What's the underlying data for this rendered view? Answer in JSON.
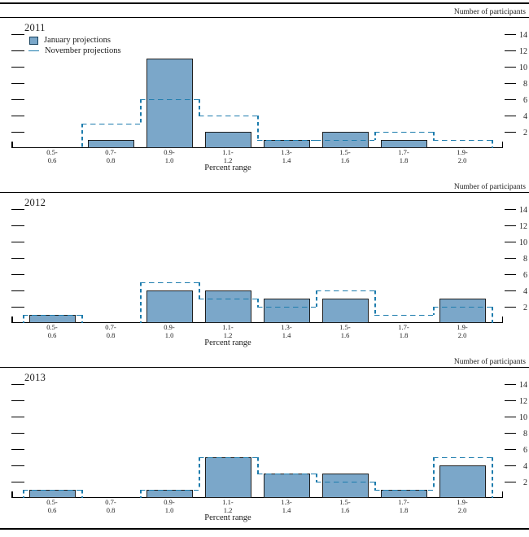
{
  "figure": {
    "units_label": "Number of participants",
    "x_axis_label": "Percent range",
    "colors": {
      "bar_fill": "#7BA7C9",
      "bar_border": "#1F1F1F",
      "dash_line": "#1D7CAD",
      "text": "#1A1A1A",
      "rule": "#000000"
    }
  },
  "chart_data": [
    {
      "type": "bar",
      "title": "2011",
      "categories": [
        [
          "0.5-",
          "0.6"
        ],
        [
          "0.7-",
          "0.8"
        ],
        [
          "0.9-",
          "1.0"
        ],
        [
          "1.1-",
          "1.2"
        ],
        [
          "1.3-",
          "1.4"
        ],
        [
          "1.5-",
          "1.6"
        ],
        [
          "1.7-",
          "1.8"
        ],
        [
          "1.9-",
          "2.0"
        ]
      ],
      "series": [
        {
          "name": "January projections",
          "style": "filled-bar",
          "values": [
            0,
            1,
            11,
            2,
            1,
            2,
            1,
            0
          ]
        },
        {
          "name": "November projections",
          "style": "dashed-step-outline",
          "values": [
            0,
            3,
            6,
            4,
            1,
            1,
            2,
            1
          ]
        }
      ],
      "xlabel": "Percent range",
      "ylabel": "Number of participants",
      "yticks": [
        2,
        4,
        6,
        8,
        10,
        12,
        14
      ],
      "ylim": [
        0,
        16
      ],
      "grid": false,
      "legend_position": "top-left"
    },
    {
      "type": "bar",
      "title": "2012",
      "categories": [
        [
          "0.5-",
          "0.6"
        ],
        [
          "0.7-",
          "0.8"
        ],
        [
          "0.9-",
          "1.0"
        ],
        [
          "1.1-",
          "1.2"
        ],
        [
          "1.3-",
          "1.4"
        ],
        [
          "1.5-",
          "1.6"
        ],
        [
          "1.7-",
          "1.8"
        ],
        [
          "1.9-",
          "2.0"
        ]
      ],
      "series": [
        {
          "name": "January projections",
          "style": "filled-bar",
          "values": [
            1,
            0,
            4,
            4,
            3,
            3,
            0,
            3
          ]
        },
        {
          "name": "November projections",
          "style": "dashed-step-outline",
          "values": [
            1,
            0,
            5,
            3,
            2,
            4,
            1,
            2
          ]
        }
      ],
      "xlabel": "Percent range",
      "ylabel": "Number of participants",
      "yticks": [
        2,
        4,
        6,
        8,
        10,
        12,
        14
      ],
      "ylim": [
        0,
        16
      ],
      "grid": false,
      "legend_position": "none"
    },
    {
      "type": "bar",
      "title": "2013",
      "categories": [
        [
          "0.5-",
          "0.6"
        ],
        [
          "0.7-",
          "0.8"
        ],
        [
          "0.9-",
          "1.0"
        ],
        [
          "1.1-",
          "1.2"
        ],
        [
          "1.3-",
          "1.4"
        ],
        [
          "1.5-",
          "1.6"
        ],
        [
          "1.7-",
          "1.8"
        ],
        [
          "1.9-",
          "2.0"
        ]
      ],
      "series": [
        {
          "name": "January projections",
          "style": "filled-bar",
          "values": [
            1,
            0,
            1,
            5,
            3,
            3,
            1,
            4
          ]
        },
        {
          "name": "November projections",
          "style": "dashed-step-outline",
          "values": [
            1,
            0,
            1,
            5,
            3,
            2,
            1,
            5
          ]
        }
      ],
      "xlabel": "Percent range",
      "ylabel": "Number of participants",
      "yticks": [
        2,
        4,
        6,
        8,
        10,
        12,
        14
      ],
      "ylim": [
        0,
        16
      ],
      "grid": false,
      "legend_position": "none"
    }
  ]
}
